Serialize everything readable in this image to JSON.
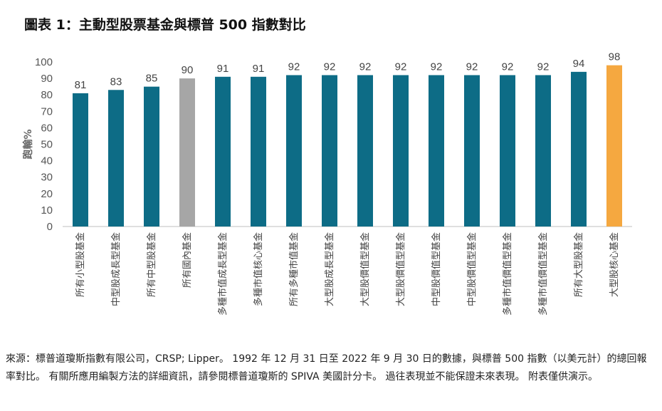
{
  "title": "圖表 1：主動型股票基金與標普 500 指數對比",
  "chart_data": {
    "type": "bar",
    "title": "圖表 1：主動型股票基金與標普 500 指數對比",
    "xlabel": "",
    "ylabel": "跑輸%",
    "ylim": [
      0,
      100
    ],
    "yticks": [
      0,
      10,
      20,
      30,
      40,
      50,
      60,
      70,
      80,
      90,
      100
    ],
    "grid": false,
    "categories": [
      "所有小型股基金",
      "中型股成長型基金",
      "所有中型股基金",
      "所有國內基金",
      "多種市值成長型基金",
      "多種市值核心基金",
      "所有多種市值基金",
      "大型股成長型基金",
      "大型股價值型基金",
      "大型股價值型基金",
      "中型股價值型基金",
      "中型股價值型基金",
      "多種市值價值型基金",
      "多種市值價值型基金",
      "所有大型股基金",
      "大型股核心基金"
    ],
    "values": [
      81,
      83,
      85,
      90,
      91,
      91,
      92,
      92,
      92,
      92,
      92,
      92,
      92,
      92,
      94,
      98
    ],
    "bar_colors": [
      "#0d6c86",
      "#0d6c86",
      "#0d6c86",
      "#a6a6a6",
      "#0d6c86",
      "#0d6c86",
      "#0d6c86",
      "#0d6c86",
      "#0d6c86",
      "#0d6c86",
      "#0d6c86",
      "#0d6c86",
      "#0d6c86",
      "#0d6c86",
      "#0d6c86",
      "#f5a840"
    ]
  },
  "source_text": "來源：標普道瓊斯指數有限公司，CRSP; Lipper。 1992 年 12 月 31 日至 2022 年 9 月 30 日的數據，與標普 500 指數（以美元計）的總回報率對比。 有關所應用編製方法的詳細資訊，請參閱標普道瓊斯的 SPIVA 美國計分卡。 過往表現並不能保證未來表現。 附表僅供演示。"
}
